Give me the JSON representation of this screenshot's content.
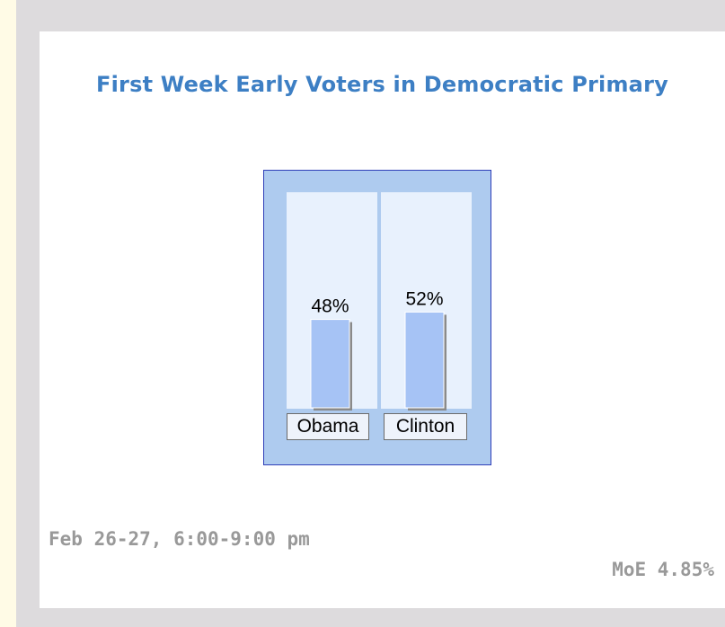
{
  "chart_data": {
    "type": "bar",
    "title": "First Week Early Voters in Democratic Primary",
    "categories": [
      "Obama",
      "Clinton"
    ],
    "values": [
      48,
      52
    ],
    "value_labels": [
      "48%",
      "52%"
    ],
    "ylim": [
      0,
      100
    ],
    "grid": false,
    "legend": "none",
    "colors": {
      "bar": "#a6c3f5",
      "column_bg": "#e8f1fd",
      "frame_bg": "#aecbef",
      "frame_border": "#2f3fb8",
      "title": "#3d7fc4",
      "footer": "#999999"
    }
  },
  "footer": {
    "date": "Feb 26-27, 6:00-9:00 pm",
    "moe": "MoE 4.85%"
  }
}
